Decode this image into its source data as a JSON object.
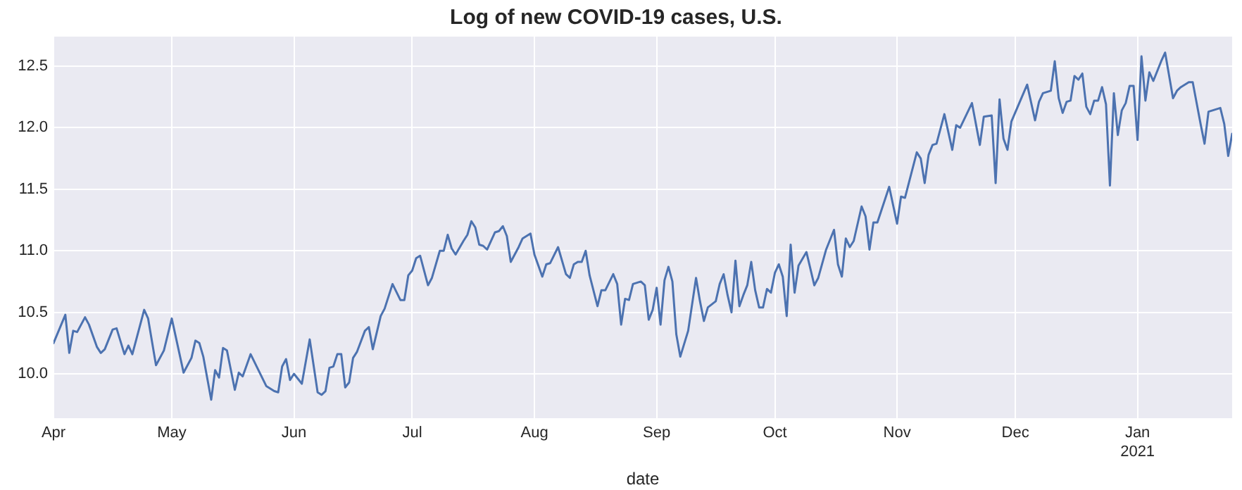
{
  "chart_data": {
    "type": "line",
    "title": "Log of new COVID-19 cases, U.S.",
    "xlabel": "date",
    "x": [
      "2020-04-01",
      "2020-04-04",
      "2020-04-05",
      "2020-04-06",
      "2020-04-07",
      "2020-04-09",
      "2020-04-10",
      "2020-04-12",
      "2020-04-13",
      "2020-04-14",
      "2020-04-16",
      "2020-04-17",
      "2020-04-19",
      "2020-04-20",
      "2020-04-21",
      "2020-04-24",
      "2020-04-25",
      "2020-04-27",
      "2020-04-29",
      "2020-05-01",
      "2020-05-04",
      "2020-05-06",
      "2020-05-07",
      "2020-05-08",
      "2020-05-09",
      "2020-05-11",
      "2020-05-12",
      "2020-05-13",
      "2020-05-14",
      "2020-05-15",
      "2020-05-17",
      "2020-05-18",
      "2020-05-19",
      "2020-05-21",
      "2020-05-23",
      "2020-05-25",
      "2020-05-27",
      "2020-05-28",
      "2020-05-29",
      "2020-05-30",
      "2020-05-31",
      "2020-06-01",
      "2020-06-03",
      "2020-06-05",
      "2020-06-07",
      "2020-06-08",
      "2020-06-09",
      "2020-06-10",
      "2020-06-11",
      "2020-06-12",
      "2020-06-13",
      "2020-06-14",
      "2020-06-15",
      "2020-06-16",
      "2020-06-17",
      "2020-06-19",
      "2020-06-20",
      "2020-06-21",
      "2020-06-23",
      "2020-06-24",
      "2020-06-26",
      "2020-06-28",
      "2020-06-29",
      "2020-06-30",
      "2020-07-01",
      "2020-07-02",
      "2020-07-03",
      "2020-07-05",
      "2020-07-06",
      "2020-07-08",
      "2020-07-09",
      "2020-07-10",
      "2020-07-11",
      "2020-07-12",
      "2020-07-14",
      "2020-07-15",
      "2020-07-16",
      "2020-07-17",
      "2020-07-18",
      "2020-07-19",
      "2020-07-20",
      "2020-07-22",
      "2020-07-23",
      "2020-07-24",
      "2020-07-25",
      "2020-07-26",
      "2020-07-28",
      "2020-07-29",
      "2020-07-31",
      "2020-08-01",
      "2020-08-03",
      "2020-08-04",
      "2020-08-05",
      "2020-08-07",
      "2020-08-09",
      "2020-08-10",
      "2020-08-11",
      "2020-08-12",
      "2020-08-13",
      "2020-08-14",
      "2020-08-15",
      "2020-08-17",
      "2020-08-18",
      "2020-08-19",
      "2020-08-21",
      "2020-08-22",
      "2020-08-23",
      "2020-08-24",
      "2020-08-25",
      "2020-08-26",
      "2020-08-28",
      "2020-08-29",
      "2020-08-30",
      "2020-08-31",
      "2020-09-01",
      "2020-09-02",
      "2020-09-03",
      "2020-09-04",
      "2020-09-05",
      "2020-09-06",
      "2020-09-07",
      "2020-09-09",
      "2020-09-11",
      "2020-09-12",
      "2020-09-13",
      "2020-09-14",
      "2020-09-16",
      "2020-09-17",
      "2020-09-18",
      "2020-09-19",
      "2020-09-20",
      "2020-09-21",
      "2020-09-22",
      "2020-09-23",
      "2020-09-24",
      "2020-09-25",
      "2020-09-26",
      "2020-09-27",
      "2020-09-28",
      "2020-09-29",
      "2020-09-30",
      "2020-10-01",
      "2020-10-02",
      "2020-10-03",
      "2020-10-04",
      "2020-10-05",
      "2020-10-06",
      "2020-10-07",
      "2020-10-09",
      "2020-10-11",
      "2020-10-12",
      "2020-10-14",
      "2020-10-16",
      "2020-10-17",
      "2020-10-18",
      "2020-10-19",
      "2020-10-20",
      "2020-10-21",
      "2020-10-23",
      "2020-10-24",
      "2020-10-25",
      "2020-10-26",
      "2020-10-27",
      "2020-10-30",
      "2020-11-01",
      "2020-11-02",
      "2020-11-03",
      "2020-11-06",
      "2020-11-07",
      "2020-11-08",
      "2020-11-09",
      "2020-11-10",
      "2020-11-11",
      "2020-11-13",
      "2020-11-15",
      "2020-11-16",
      "2020-11-17",
      "2020-11-20",
      "2020-11-22",
      "2020-11-23",
      "2020-11-25",
      "2020-11-26",
      "2020-11-27",
      "2020-11-28",
      "2020-11-29",
      "2020-11-30",
      "2020-12-04",
      "2020-12-06",
      "2020-12-07",
      "2020-12-08",
      "2020-12-10",
      "2020-12-11",
      "2020-12-12",
      "2020-12-13",
      "2020-12-14",
      "2020-12-15",
      "2020-12-16",
      "2020-12-17",
      "2020-12-18",
      "2020-12-19",
      "2020-12-20",
      "2020-12-21",
      "2020-12-22",
      "2020-12-23",
      "2020-12-24",
      "2020-12-25",
      "2020-12-26",
      "2020-12-27",
      "2020-12-28",
      "2020-12-29",
      "2020-12-30",
      "2020-12-31",
      "2021-01-01",
      "2021-01-02",
      "2021-01-03",
      "2021-01-04",
      "2021-01-05",
      "2021-01-06",
      "2021-01-07",
      "2021-01-08",
      "2021-01-10",
      "2021-01-11",
      "2021-01-12",
      "2021-01-14",
      "2021-01-15",
      "2021-01-16",
      "2021-01-17",
      "2021-01-18",
      "2021-01-19",
      "2021-01-20",
      "2021-01-22",
      "2021-01-23",
      "2021-01-24",
      "2021-01-25"
    ],
    "series": [
      {
        "color": "#4c72b0",
        "values": [
          10.25,
          10.48,
          10.17,
          10.35,
          10.34,
          10.46,
          10.4,
          10.22,
          10.17,
          10.2,
          10.36,
          10.37,
          10.16,
          10.23,
          10.16,
          10.52,
          10.45,
          10.07,
          10.19,
          10.45,
          10.01,
          10.13,
          10.27,
          10.25,
          10.14,
          9.79,
          10.03,
          9.97,
          10.21,
          10.19,
          9.87,
          10.01,
          9.98,
          10.16,
          10.03,
          9.9,
          9.86,
          9.85,
          10.06,
          10.12,
          9.95,
          10.0,
          9.92,
          10.28,
          9.85,
          9.83,
          9.86,
          10.05,
          10.06,
          10.16,
          10.16,
          9.89,
          9.93,
          10.13,
          10.18,
          10.35,
          10.38,
          10.2,
          10.47,
          10.53,
          10.73,
          10.6,
          10.6,
          10.8,
          10.84,
          10.94,
          10.96,
          10.72,
          10.78,
          11.0,
          11.0,
          11.13,
          11.02,
          10.97,
          11.08,
          11.13,
          11.24,
          11.19,
          11.05,
          11.04,
          11.01,
          11.15,
          11.16,
          11.2,
          11.12,
          10.91,
          11.03,
          11.1,
          11.14,
          10.97,
          10.79,
          10.89,
          10.9,
          11.03,
          10.81,
          10.78,
          10.89,
          10.91,
          10.91,
          11.0,
          10.8,
          10.55,
          10.68,
          10.68,
          10.81,
          10.73,
          10.4,
          10.61,
          10.6,
          10.73,
          10.75,
          10.72,
          10.44,
          10.52,
          10.7,
          10.4,
          10.76,
          10.87,
          10.75,
          10.32,
          10.14,
          10.35,
          10.78,
          10.59,
          10.43,
          10.54,
          10.59,
          10.73,
          10.81,
          10.64,
          10.5,
          10.92,
          10.55,
          10.64,
          10.72,
          10.91,
          10.68,
          10.54,
          10.54,
          10.69,
          10.66,
          10.82,
          10.89,
          10.79,
          10.47,
          11.05,
          10.66,
          10.88,
          10.99,
          10.72,
          10.78,
          11.01,
          11.17,
          10.89,
          10.79,
          11.1,
          11.03,
          11.08,
          11.36,
          11.28,
          11.01,
          11.23,
          11.23,
          11.52,
          11.22,
          11.44,
          11.43,
          11.8,
          11.75,
          11.55,
          11.78,
          11.86,
          11.87,
          12.11,
          11.82,
          12.02,
          12.0,
          12.2,
          11.86,
          12.09,
          12.1,
          11.55,
          12.23,
          11.91,
          11.82,
          12.05,
          12.35,
          12.06,
          12.21,
          12.28,
          12.3,
          12.54,
          12.24,
          12.12,
          12.21,
          12.22,
          12.42,
          12.39,
          12.44,
          12.17,
          12.11,
          12.22,
          12.22,
          12.33,
          12.19,
          11.53,
          12.28,
          11.94,
          12.14,
          12.2,
          12.34,
          12.34,
          11.9,
          12.58,
          12.22,
          12.45,
          12.38,
          12.46,
          12.54,
          12.61,
          12.24,
          12.3,
          12.33,
          12.37,
          12.37,
          12.2,
          12.03,
          11.87,
          12.13,
          12.14,
          12.16,
          12.03,
          11.77,
          11.95
        ]
      }
    ],
    "xlim": [
      "2020-04-01",
      "2021-01-25"
    ],
    "xticks": [
      {
        "value": "2020-04-01",
        "label": "Apr"
      },
      {
        "value": "2020-05-01",
        "label": "May"
      },
      {
        "value": "2020-06-01",
        "label": "Jun"
      },
      {
        "value": "2020-07-01",
        "label": "Jul"
      },
      {
        "value": "2020-08-01",
        "label": "Aug"
      },
      {
        "value": "2020-09-01",
        "label": "Sep"
      },
      {
        "value": "2020-10-01",
        "label": "Oct"
      },
      {
        "value": "2020-11-01",
        "label": "Nov"
      },
      {
        "value": "2020-12-01",
        "label": "Dec"
      },
      {
        "value": "2021-01-01",
        "label": "Jan\n2021"
      }
    ],
    "ylim": [
      9.64,
      12.74
    ],
    "yticks": [
      {
        "value": 10,
        "label": "10.0"
      },
      {
        "value": 10.5,
        "label": "10.5"
      },
      {
        "value": 11,
        "label": "11.0"
      },
      {
        "value": 11.5,
        "label": "11.5"
      },
      {
        "value": 12,
        "label": "12.0"
      },
      {
        "value": 12.5,
        "label": "12.5"
      }
    ],
    "grid": true,
    "marker": "none",
    "line_style": "solid"
  }
}
